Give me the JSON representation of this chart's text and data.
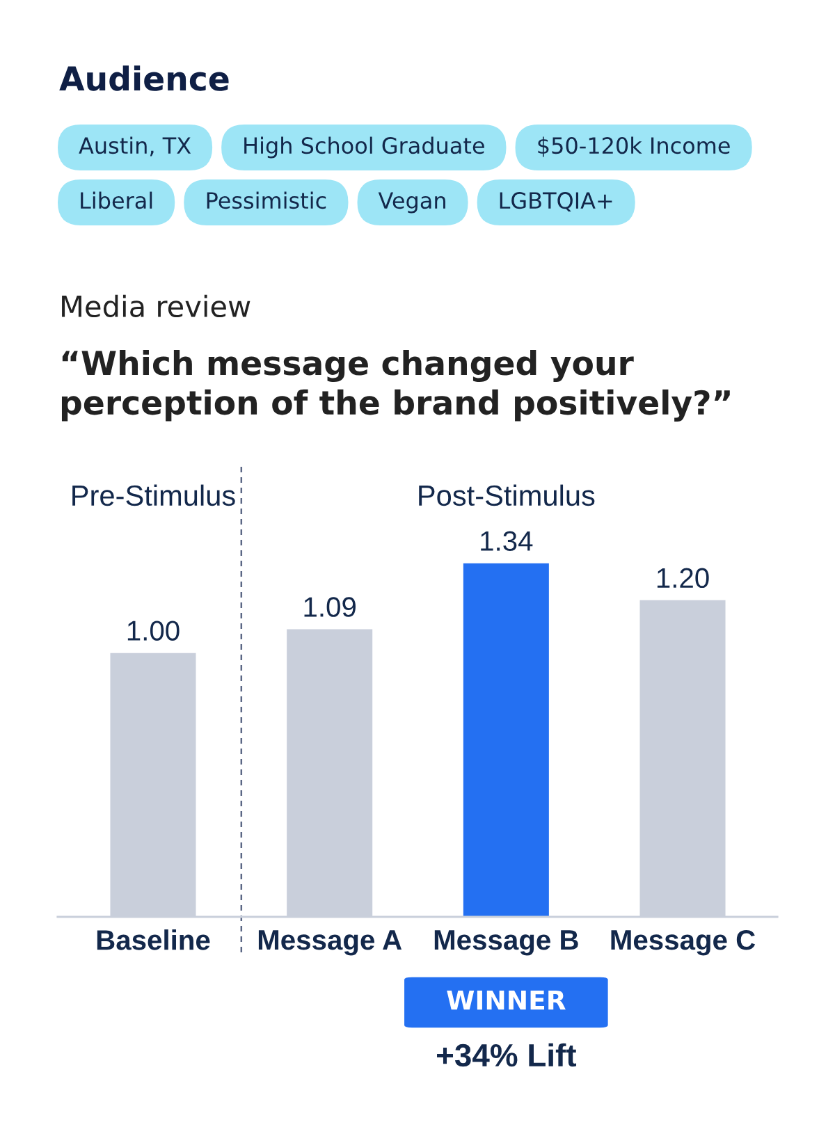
{
  "chart_data": {
    "type": "bar",
    "title": "“Which message changed your perception of the brand positively?”",
    "subtitle": "Media review",
    "categories": [
      "Baseline",
      "Message A",
      "Message B",
      "Message C"
    ],
    "values": [
      1.0,
      1.09,
      1.34,
      1.2
    ],
    "colors": [
      "#c9cfdb",
      "#c9cfdb",
      "#2470f2",
      "#c9cfdb"
    ],
    "value_labels": [
      "1.00",
      "1.09",
      "1.34",
      "1.20"
    ],
    "tick_labels": "x",
    "annotations": [
      "Audience",
      "Austin, TX",
      "High School Graduate",
      "$50-120k Income",
      "Liberal",
      "Pessimistic",
      "Vegan",
      "LGBTQIA+",
      "Pre-Stimulus",
      "Post-Stimulus",
      "WINNER",
      "+34% Lift"
    ]
  }
}
